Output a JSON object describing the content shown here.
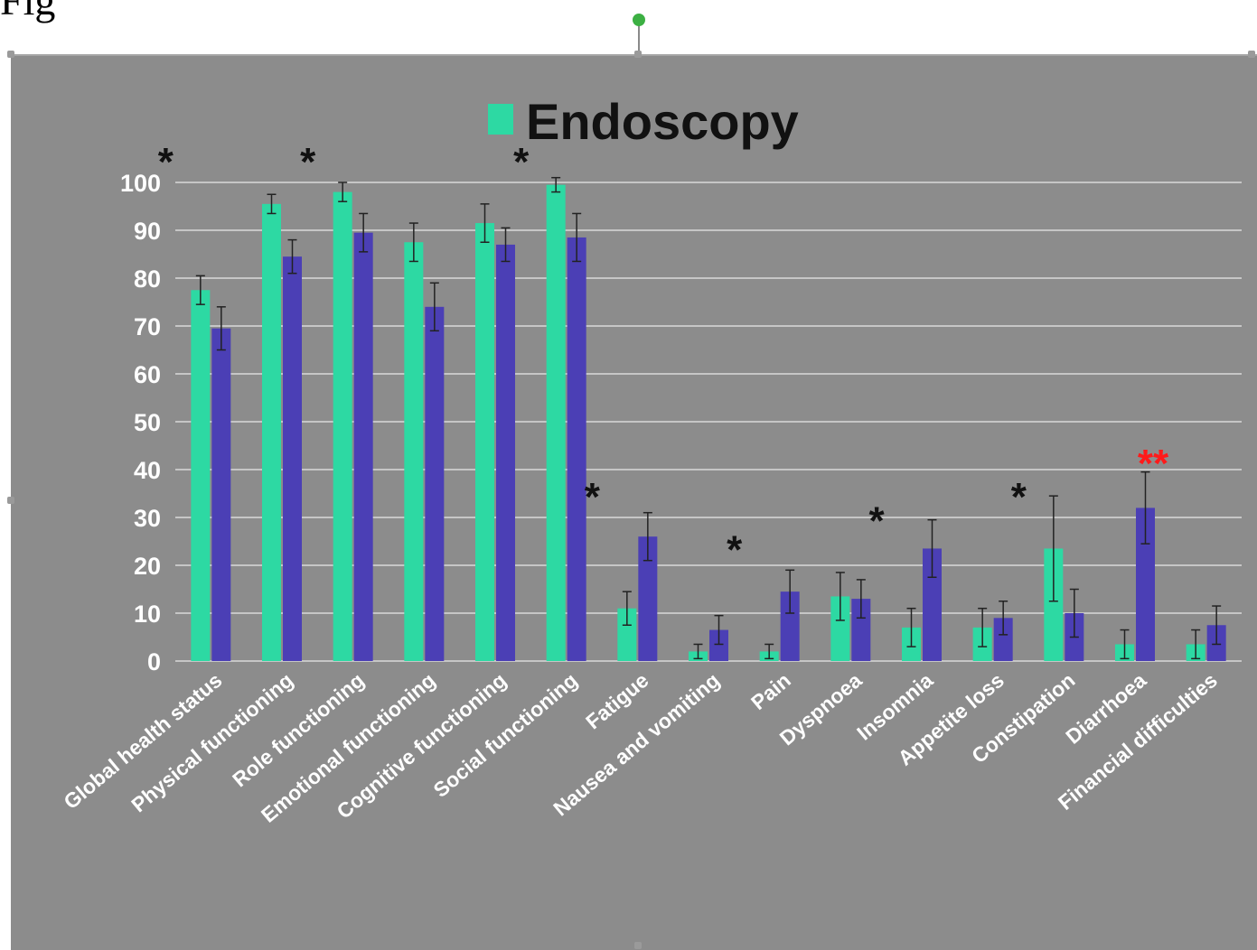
{
  "document": {
    "caption_left": "Fig",
    "caption_middle": "",
    "caption_right": ""
  },
  "colors": {
    "background": "#8c8c8c",
    "gridline": "#d9d9d9",
    "endoscopy": "#2dd9a3",
    "other_series": "#4b3fb5",
    "significance": "#111111",
    "significance_strong": "#ff1a1a",
    "text": "#ffffff"
  },
  "chart_data": {
    "type": "bar",
    "title": "",
    "xlabel": "",
    "ylabel": "",
    "ylim": [
      0,
      100
    ],
    "yticks": [
      0,
      10,
      20,
      30,
      40,
      50,
      60,
      70,
      80,
      90,
      100
    ],
    "grid": true,
    "legend": {
      "position": "top-center",
      "entries": [
        "Endoscopy"
      ]
    },
    "categories": [
      "Global health status",
      "Physical functioning",
      "Role functioning",
      "Emotional functioning",
      "Cognitive functioning",
      "Social functioning",
      "Fatigue",
      "Nausea and vomiting",
      "Pain",
      "Dyspnoea",
      "Insomnia",
      "Appetite loss",
      "Constipation",
      "Diarrhoea",
      "Financial difficulties"
    ],
    "series": [
      {
        "name": "Endoscopy",
        "values": [
          77.5,
          95.5,
          98,
          87.5,
          91.5,
          99.5,
          11,
          2,
          2,
          13.5,
          7,
          7,
          23.5,
          3.5,
          3.5
        ],
        "errors": [
          3,
          2,
          2,
          4,
          4,
          1.5,
          3.5,
          1.5,
          1.5,
          5,
          4,
          4,
          11,
          3,
          3
        ]
      },
      {
        "name": "",
        "values": [
          69.5,
          84.5,
          89.5,
          74,
          87,
          88.5,
          26,
          6.5,
          14.5,
          13,
          23.5,
          9,
          10,
          32,
          7.5
        ],
        "errors": [
          4.5,
          3.5,
          4,
          5,
          3.5,
          5,
          5,
          3,
          4.5,
          4,
          6,
          3.5,
          5,
          7.5,
          4
        ]
      }
    ],
    "annotations": [
      {
        "category": "Global health status",
        "text": "*",
        "y": 106
      },
      {
        "category": "Role functioning",
        "text": "*",
        "y": 106
      },
      {
        "category": "Social functioning",
        "text": "*",
        "y": 106
      },
      {
        "category": "Fatigue",
        "text": "*",
        "y": 36
      },
      {
        "category": "Pain",
        "text": "*",
        "y": 25
      },
      {
        "category": "Insomnia",
        "text": "*",
        "y": 31
      },
      {
        "category": "Constipation",
        "text": "*",
        "y": 36
      },
      {
        "category": "Diarrhoea",
        "text": "**",
        "y": 43,
        "strong": true
      }
    ]
  }
}
